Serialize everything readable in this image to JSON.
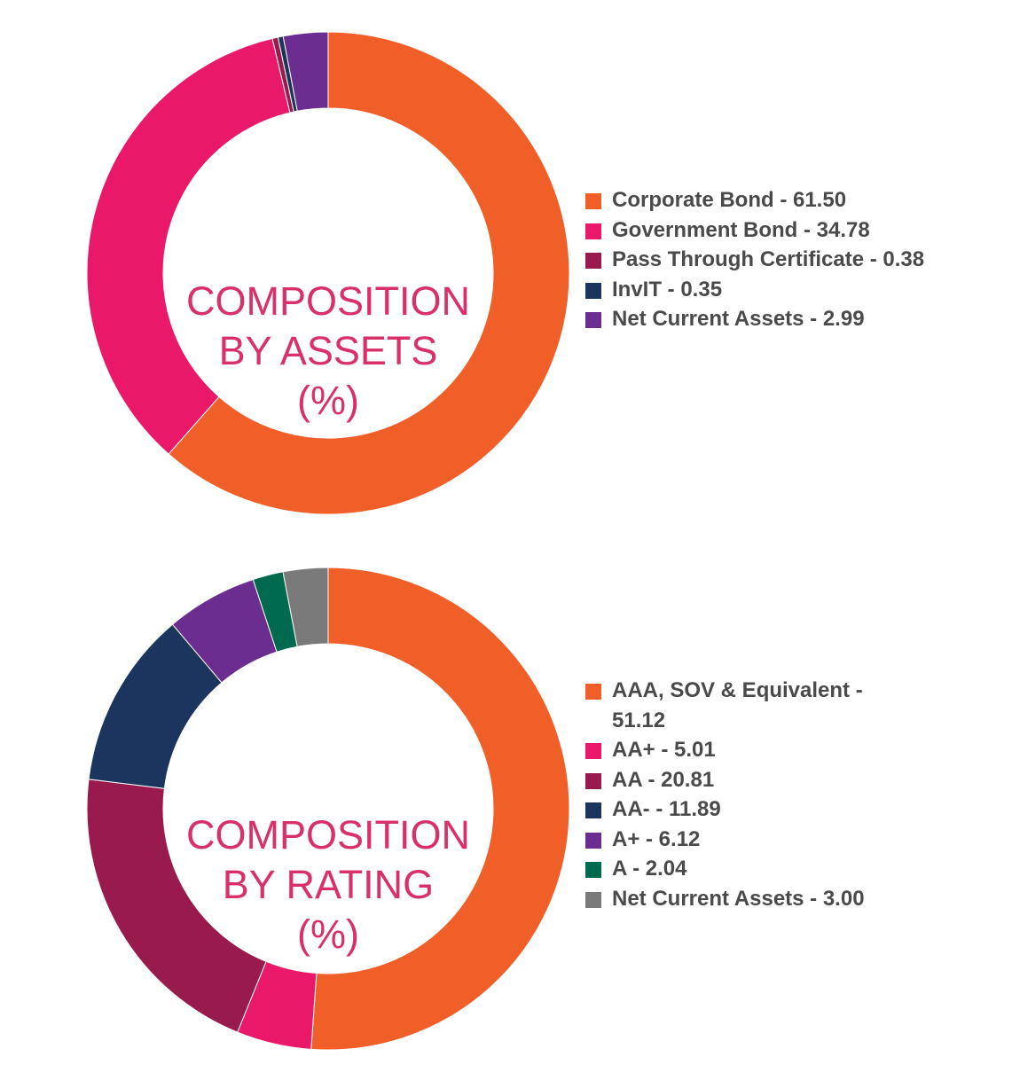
{
  "chart_data": [
    {
      "type": "pie",
      "title_lines": [
        "COMPOSITION",
        "BY ASSETS",
        "(%)"
      ],
      "legend_position": "right",
      "slices": [
        {
          "label": "Corporate Bond - 61.50",
          "value": 61.5,
          "color": "#f05f28"
        },
        {
          "label": "Government Bond - 34.78",
          "value": 34.78,
          "color": "#ea1868"
        },
        {
          "label": "Pass Through Certificate - 0.38",
          "value": 0.38,
          "color": "#991b4d"
        },
        {
          "label": "InvIT - 0.35",
          "value": 0.35,
          "color": "#1c355e"
        },
        {
          "label": "Net Current Assets - 2.99",
          "value": 2.99,
          "color": "#6b2d90"
        }
      ]
    },
    {
      "type": "pie",
      "title_lines": [
        "COMPOSITION",
        "BY RATING",
        "(%)"
      ],
      "legend_position": "right",
      "slices": [
        {
          "label": "AAA, SOV & Equivalent - 51.12",
          "value": 51.12,
          "color": "#f05f28"
        },
        {
          "label": "AA+ - 5.01",
          "value": 5.01,
          "color": "#ea1868"
        },
        {
          "label": "AA - 20.81",
          "value": 20.81,
          "color": "#991b4d"
        },
        {
          "label": "AA- - 11.89",
          "value": 11.89,
          "color": "#1c355e"
        },
        {
          "label": "A+ - 6.12",
          "value": 6.12,
          "color": "#6b2d90"
        },
        {
          "label": "A - 2.04",
          "value": 2.04,
          "color": "#006a4e"
        },
        {
          "label": "Net Current Assets - 3.00",
          "value": 3.0,
          "color": "#7a7a7a"
        }
      ]
    }
  ]
}
